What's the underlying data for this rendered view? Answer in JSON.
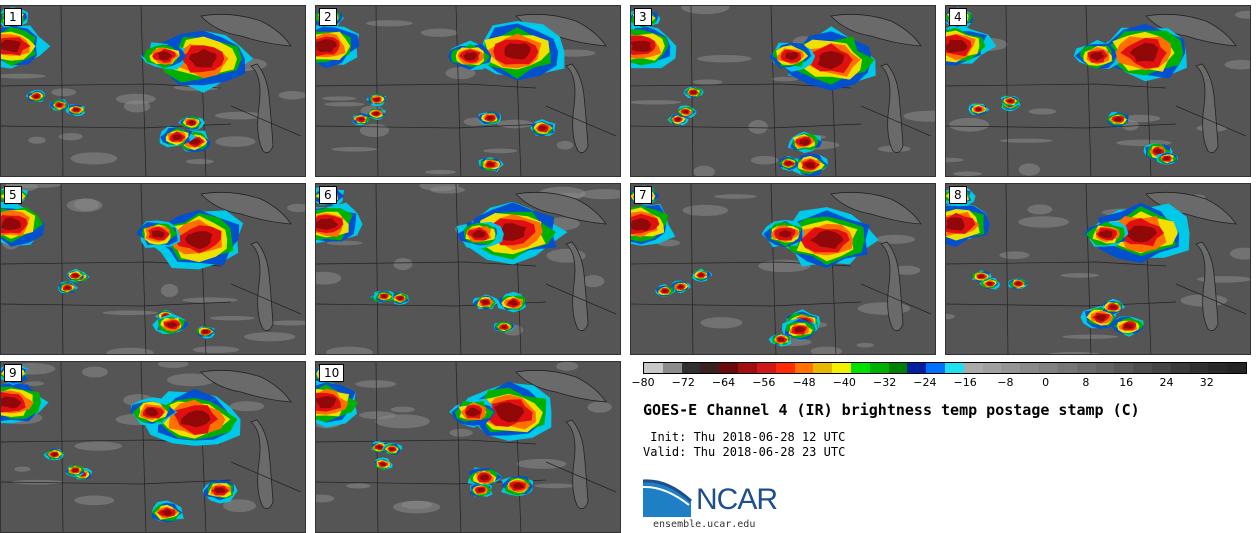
{
  "panels": [
    {
      "label": "1"
    },
    {
      "label": "2"
    },
    {
      "label": "3"
    },
    {
      "label": "4"
    },
    {
      "label": "5"
    },
    {
      "label": "6"
    },
    {
      "label": "7"
    },
    {
      "label": "8"
    },
    {
      "label": "9"
    },
    {
      "label": "10"
    }
  ],
  "colorbar": {
    "colors": [
      "#c8c8c8",
      "#8c8c8c",
      "#303030",
      "#3a2020",
      "#6b0a0a",
      "#a01010",
      "#d01818",
      "#ff2a00",
      "#ff7000",
      "#e8b800",
      "#f0f000",
      "#00e000",
      "#00b000",
      "#008000",
      "#0020a0",
      "#0070ff",
      "#20e0f0",
      "#aaaaaa",
      "#a0a0a0",
      "#959595",
      "#8a8a8a",
      "#808080",
      "#767676",
      "#6c6c6c",
      "#626262",
      "#585858",
      "#4e4e4e",
      "#444444",
      "#3a3a3a",
      "#303030",
      "#2a2a2a",
      "#242424"
    ],
    "ticks": [
      "−80",
      "−72",
      "−64",
      "−56",
      "−48",
      "−40",
      "−32",
      "−24",
      "−16",
      "−8",
      "0",
      "8",
      "16",
      "24",
      "32"
    ],
    "tick_values": [
      -80,
      -72,
      -64,
      -56,
      -48,
      -40,
      -32,
      -24,
      -16,
      -8,
      0,
      8,
      16,
      24,
      32
    ],
    "min": -80,
    "max": 40
  },
  "title": "GOES-E Channel 4 (IR) brightness temp postage stamp (C)",
  "init": " Init: Thu 2018-06-28 12 UTC",
  "valid": "Valid: Thu 2018-06-28 23 UTC",
  "logo_text": "NCAR",
  "url": "ensemble.ucar.edu"
}
